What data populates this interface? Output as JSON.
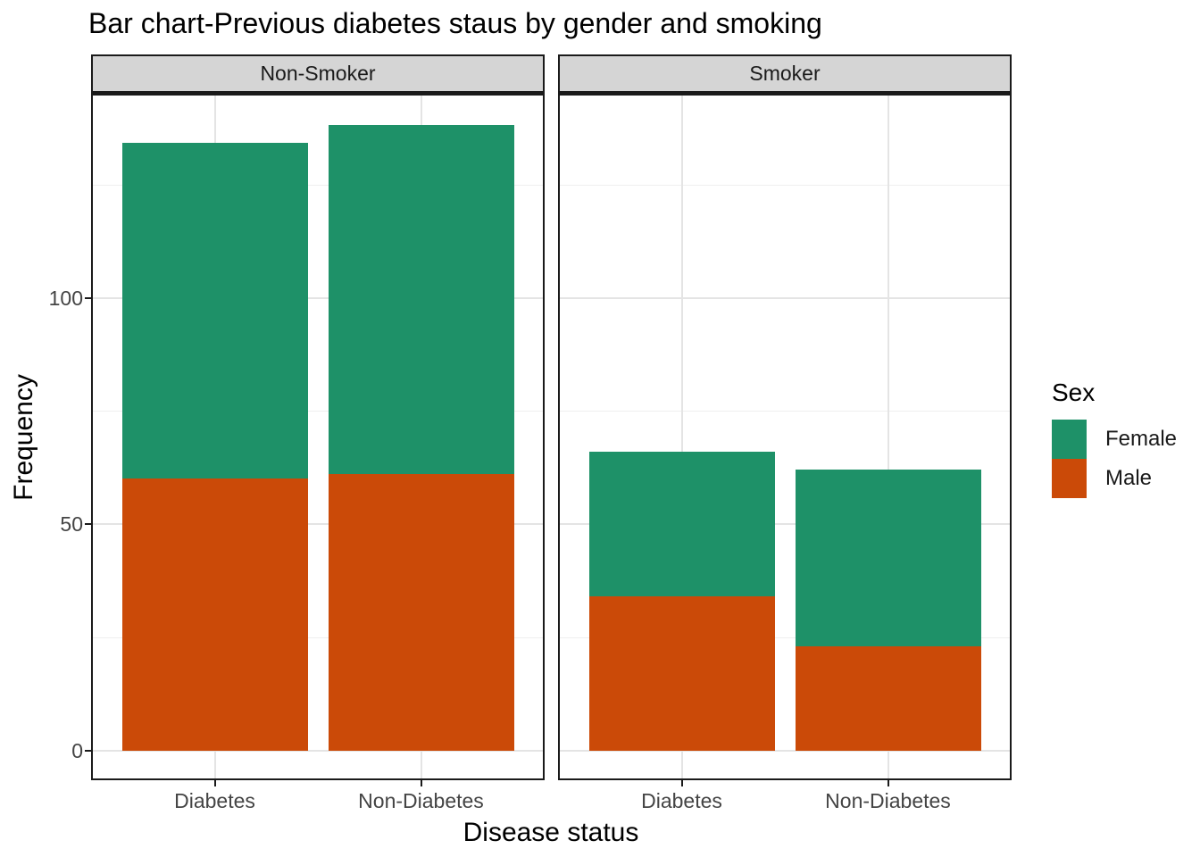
{
  "title": "Bar chart-Previous diabetes staus by gender and smoking",
  "axes": {
    "x_label": "Disease status",
    "y_label": "Frequency",
    "y_ticks": [
      "0",
      "50",
      "100"
    ],
    "x_categories": [
      "Diabetes",
      "Non-Diabetes"
    ]
  },
  "facets": [
    "Non-Smoker",
    "Smoker"
  ],
  "legend": {
    "title": "Sex",
    "entries": [
      {
        "label": "Female",
        "color": "#1e9168"
      },
      {
        "label": "Male",
        "color": "#cb4a08"
      }
    ]
  },
  "style": {
    "strip_background": "#d5d5d5",
    "panel_border": "#1a1a1a",
    "grid_major": "#e4e4e4",
    "grid_minor": "#efefef"
  },
  "chart_data": {
    "type": "bar",
    "stacking": "stacked",
    "title": "Bar chart-Previous diabetes staus by gender and smoking",
    "xlabel": "Disease status",
    "ylabel": "Frequency",
    "ylim": [
      0,
      145
    ],
    "y_major_ticks": [
      0,
      50,
      100
    ],
    "y_minor_gridlines": [
      25,
      75,
      125
    ],
    "grid": true,
    "legend_position": "right",
    "legend_title": "Sex",
    "facets": [
      {
        "name": "Non-Smoker",
        "categories": [
          "Diabetes",
          "Non-Diabetes"
        ],
        "series": [
          {
            "name": "Male",
            "values": [
              60,
              61
            ]
          },
          {
            "name": "Female",
            "values": [
              74,
              77
            ]
          }
        ],
        "totals": [
          134,
          138
        ]
      },
      {
        "name": "Smoker",
        "categories": [
          "Diabetes",
          "Non-Diabetes"
        ],
        "series": [
          {
            "name": "Male",
            "values": [
              34,
              23
            ]
          },
          {
            "name": "Female",
            "values": [
              32,
              39
            ]
          }
        ],
        "totals": [
          66,
          62
        ]
      }
    ]
  }
}
